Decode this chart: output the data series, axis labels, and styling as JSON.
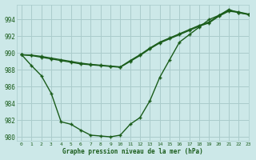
{
  "title": "Graphe pression niveau de la mer (hPa)",
  "bg_color": "#cce8e8",
  "grid_color": "#aacccc",
  "line_color": "#1a5c1a",
  "xlim": [
    -0.5,
    23
  ],
  "ylim": [
    979.5,
    995.8
  ],
  "yticks": [
    980,
    982,
    984,
    986,
    988,
    990,
    992,
    994
  ],
  "xticks": [
    0,
    1,
    2,
    3,
    4,
    5,
    6,
    7,
    8,
    9,
    10,
    11,
    12,
    13,
    14,
    15,
    16,
    17,
    18,
    19,
    20,
    21,
    22,
    23
  ],
  "line1_x": [
    0,
    1,
    2,
    3,
    4,
    5,
    6,
    7,
    8,
    9,
    10,
    11,
    12,
    13,
    14,
    15,
    16,
    17,
    18,
    19,
    20,
    21,
    22,
    23
  ],
  "line1_y": [
    989.8,
    988.5,
    987.3,
    985.2,
    981.8,
    981.5,
    980.8,
    980.2,
    980.1,
    980.0,
    980.2,
    981.5,
    982.3,
    984.3,
    987.1,
    989.2,
    991.3,
    992.2,
    993.1,
    994.0,
    994.5,
    995.2,
    994.8,
    994.6
  ],
  "line2_x": [
    0,
    1,
    2,
    3,
    4,
    5,
    6,
    7,
    8,
    9,
    10,
    11,
    12,
    13,
    14,
    15,
    16,
    17,
    18,
    19,
    20,
    21,
    22,
    23
  ],
  "line2_y": [
    989.8,
    989.7,
    989.5,
    989.3,
    989.1,
    988.9,
    988.7,
    988.6,
    988.5,
    988.4,
    988.3,
    989.0,
    989.7,
    990.5,
    991.2,
    991.7,
    992.2,
    992.7,
    993.2,
    993.6,
    994.4,
    995.0,
    994.85,
    994.6
  ],
  "line3_x": [
    0,
    1,
    2,
    3,
    4,
    5,
    6,
    7,
    8,
    9,
    10,
    11,
    12,
    13,
    14,
    15,
    16,
    17,
    18,
    19,
    20,
    21,
    22,
    23
  ],
  "line3_y": [
    989.8,
    989.75,
    989.6,
    989.4,
    989.2,
    989.0,
    988.8,
    988.65,
    988.55,
    988.45,
    988.35,
    989.1,
    989.8,
    990.6,
    991.3,
    991.8,
    992.3,
    992.8,
    993.3,
    993.7,
    994.5,
    995.1,
    994.9,
    994.65
  ]
}
